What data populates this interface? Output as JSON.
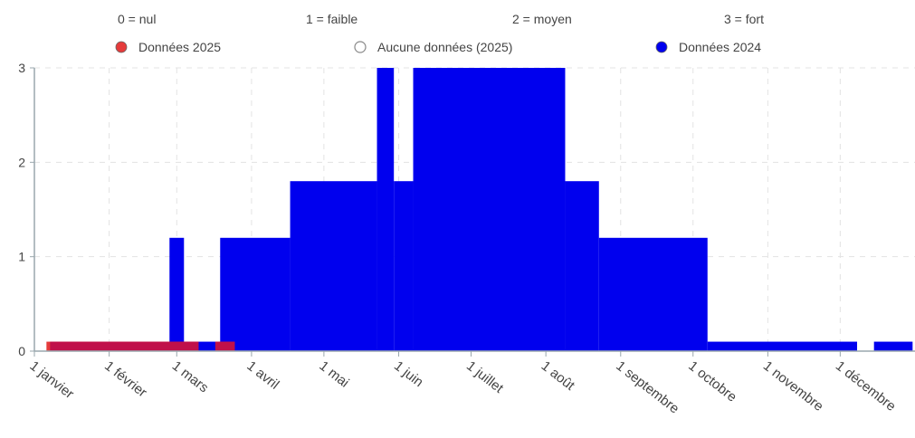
{
  "levels": [
    {
      "label": "0 = nul"
    },
    {
      "label": "1 = faible"
    },
    {
      "label": "2 = moyen"
    },
    {
      "label": "3 = fort"
    }
  ],
  "legend": [
    {
      "label": "Données 2025",
      "color": "#e53b3b",
      "marker": "filled"
    },
    {
      "label": "Aucune données (2025)",
      "color": "#ffffff",
      "marker": "outline"
    },
    {
      "label": "Données 2024",
      "color": "#0000ee",
      "marker": "filled"
    }
  ],
  "chart_data": {
    "type": "area",
    "title": "",
    "xlabel": "",
    "ylabel": "",
    "ylim": [
      0,
      3
    ],
    "yticks": [
      "0",
      "1",
      "2",
      "3"
    ],
    "x_axis": "day of year",
    "xlim": [
      "01-01",
      "12-31"
    ],
    "xticks": [
      {
        "label": "1 janvier",
        "date": "01-01"
      },
      {
        "label": "1 février",
        "date": "02-01"
      },
      {
        "label": "1 mars",
        "date": "03-01"
      },
      {
        "label": "1 avril",
        "date": "04-01"
      },
      {
        "label": "1 mai",
        "date": "05-01"
      },
      {
        "label": "1 juin",
        "date": "06-01"
      },
      {
        "label": "1 juillet",
        "date": "07-01"
      },
      {
        "label": "1 août",
        "date": "08-01"
      },
      {
        "label": "1 septembre",
        "date": "09-01"
      },
      {
        "label": "1 octobre",
        "date": "10-01"
      },
      {
        "label": "1 novembre",
        "date": "11-01"
      },
      {
        "label": "1 décembre",
        "date": "12-01"
      }
    ],
    "grid": true,
    "legend_position": "top",
    "series": [
      {
        "name": "Données 2024",
        "color": "#0000ee",
        "segments": [
          {
            "start": "02-26",
            "end": "03-04",
            "value": 1.2
          },
          {
            "start": "03-04",
            "end": "03-19",
            "value": 0.1
          },
          {
            "start": "03-19",
            "end": "04-17",
            "value": 1.2
          },
          {
            "start": "04-17",
            "end": "05-23",
            "value": 1.8
          },
          {
            "start": "05-23",
            "end": "05-30",
            "value": 3
          },
          {
            "start": "05-30",
            "end": "06-07",
            "value": 1.8
          },
          {
            "start": "06-07",
            "end": "08-09",
            "value": 3
          },
          {
            "start": "08-09",
            "end": "08-23",
            "value": 1.8
          },
          {
            "start": "08-23",
            "end": "10-07",
            "value": 1.2
          },
          {
            "start": "10-07",
            "end": "12-08",
            "value": 0.1
          },
          {
            "start": "12-15",
            "end": "12-31",
            "value": 0.1
          }
        ]
      },
      {
        "name": "Données 2025",
        "color": "#e53b3b",
        "overlap_color": "#c0104a",
        "segments": [
          {
            "start": "01-06",
            "end": "03-10",
            "value": 0.1
          },
          {
            "start": "03-17",
            "end": "03-25",
            "value": 0.1
          }
        ]
      }
    ]
  }
}
